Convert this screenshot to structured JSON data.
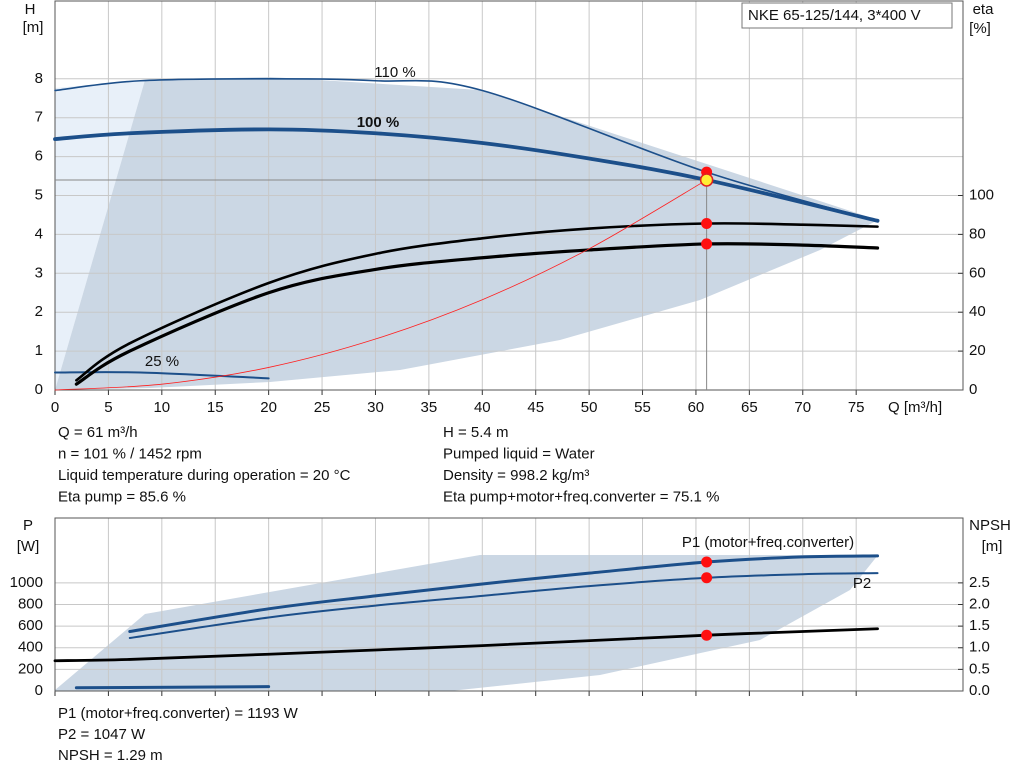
{
  "chart_data": [
    {
      "type": "line",
      "title": "NKE 65-125/144, 3*400 V",
      "ylabel": [
        "H",
        "[m]"
      ],
      "y2label": [
        "eta",
        "[%]"
      ],
      "xlabel": "Q [m³/h]",
      "xlim": [
        0,
        85
      ],
      "xticks": [
        0,
        5,
        10,
        15,
        20,
        25,
        30,
        35,
        40,
        45,
        50,
        55,
        60,
        65,
        70,
        75
      ],
      "ylim": [
        0,
        10
      ],
      "yticks": [
        0,
        1,
        2,
        3,
        4,
        5,
        6,
        7,
        8
      ],
      "y2lim": [
        0,
        200
      ],
      "y2ticks": [
        0,
        20,
        40,
        60,
        80,
        100
      ],
      "grid": true,
      "operating_point": {
        "x": 61,
        "y": 5.4
      },
      "series": [
        {
          "name": "110 %",
          "color": "#1c4f8a",
          "x": [
            0,
            8,
            20,
            30,
            40,
            61,
            77
          ],
          "values": [
            7.7,
            7.95,
            8.0,
            7.95,
            7.7,
            5.6,
            4.35
          ]
        },
        {
          "name": "100 %",
          "color": "#1c4f8a",
          "x": [
            0,
            7,
            20,
            30,
            40,
            50,
            61,
            77
          ],
          "values": [
            6.45,
            6.6,
            6.7,
            6.6,
            6.35,
            5.95,
            5.4,
            4.35
          ]
        },
        {
          "name": "25 %",
          "color": "#1c4f8a",
          "x": [
            0,
            8,
            20
          ],
          "values": [
            0.45,
            0.45,
            0.3
          ]
        },
        {
          "color": "#000000",
          "axis": "y2",
          "x": [
            2,
            7,
            20,
            30,
            40,
            50,
            61,
            70,
            77
          ],
          "values": [
            5,
            24,
            55,
            70,
            78,
            83,
            85.6,
            85,
            84
          ]
        },
        {
          "color": "#000000",
          "axis": "y2",
          "x": [
            2,
            7,
            20,
            30,
            40,
            50,
            61,
            70,
            77
          ],
          "values": [
            3,
            20,
            50,
            62,
            68,
            72,
            75.1,
            74.5,
            73
          ]
        },
        {
          "color": "#ff2020",
          "x": [
            0,
            10,
            20,
            30,
            40,
            50,
            61
          ],
          "values": [
            0,
            0.15,
            0.58,
            1.31,
            2.32,
            3.63,
            5.4
          ]
        }
      ],
      "notes": [
        "Q = 61 m³/h",
        "n = 101 % / 1452 rpm",
        "Liquid temperature during operation = 20 °C",
        "Eta pump = 85.6 %",
        "H = 5.4 m",
        "Pumped liquid = Water",
        "Density = 998.2 kg/m³",
        "Eta pump+motor+freq.converter = 75.1 %"
      ]
    },
    {
      "type": "line",
      "ylabel": [
        "P",
        "[W]"
      ],
      "y2label": [
        "NPSH",
        "[m]"
      ],
      "xlim": [
        0,
        85
      ],
      "xticks": [
        0,
        5,
        10,
        15,
        20,
        25,
        30,
        35,
        40,
        45,
        50,
        55,
        60,
        65,
        70,
        75
      ],
      "ylim": [
        0,
        1600
      ],
      "yticks": [
        0,
        200,
        400,
        600,
        800,
        {
          "value": 1000,
          "label": "1000"
        }
      ],
      "y2lim": [
        0,
        4
      ],
      "y2ticks": [
        {
          "value": 0,
          "label": "0.0"
        },
        0.5,
        {
          "value": 1,
          "label": "1.0"
        },
        1.5,
        {
          "value": 2,
          "label": "2.0"
        },
        2.5
      ],
      "grid": true,
      "series": [
        {
          "name": "P1 (motor+freq.converter)",
          "color": "#1c4f8a",
          "x": [
            7,
            20,
            30,
            40,
            50,
            61,
            70,
            77
          ],
          "values": [
            550,
            760,
            880,
            990,
            1090,
            1193,
            1240,
            1250
          ]
        },
        {
          "name": "P2",
          "color": "#1c4f8a",
          "x": [
            7,
            20,
            30,
            40,
            50,
            61,
            70,
            77
          ],
          "values": [
            490,
            680,
            790,
            880,
            970,
            1047,
            1080,
            1090
          ]
        },
        {
          "color": "#000000",
          "axis": "y2",
          "x": [
            0,
            7,
            20,
            40,
            61,
            77
          ],
          "values": [
            0.7,
            0.73,
            0.85,
            1.05,
            1.29,
            1.44
          ]
        },
        {
          "color": "#1c4f8a",
          "x": [
            2,
            20
          ],
          "values": [
            30,
            40
          ]
        }
      ],
      "notes": [
        "P1 (motor+freq.converter) = 1193 W",
        "P2 = 1047 W",
        "NPSH = 1.29 m"
      ]
    }
  ]
}
